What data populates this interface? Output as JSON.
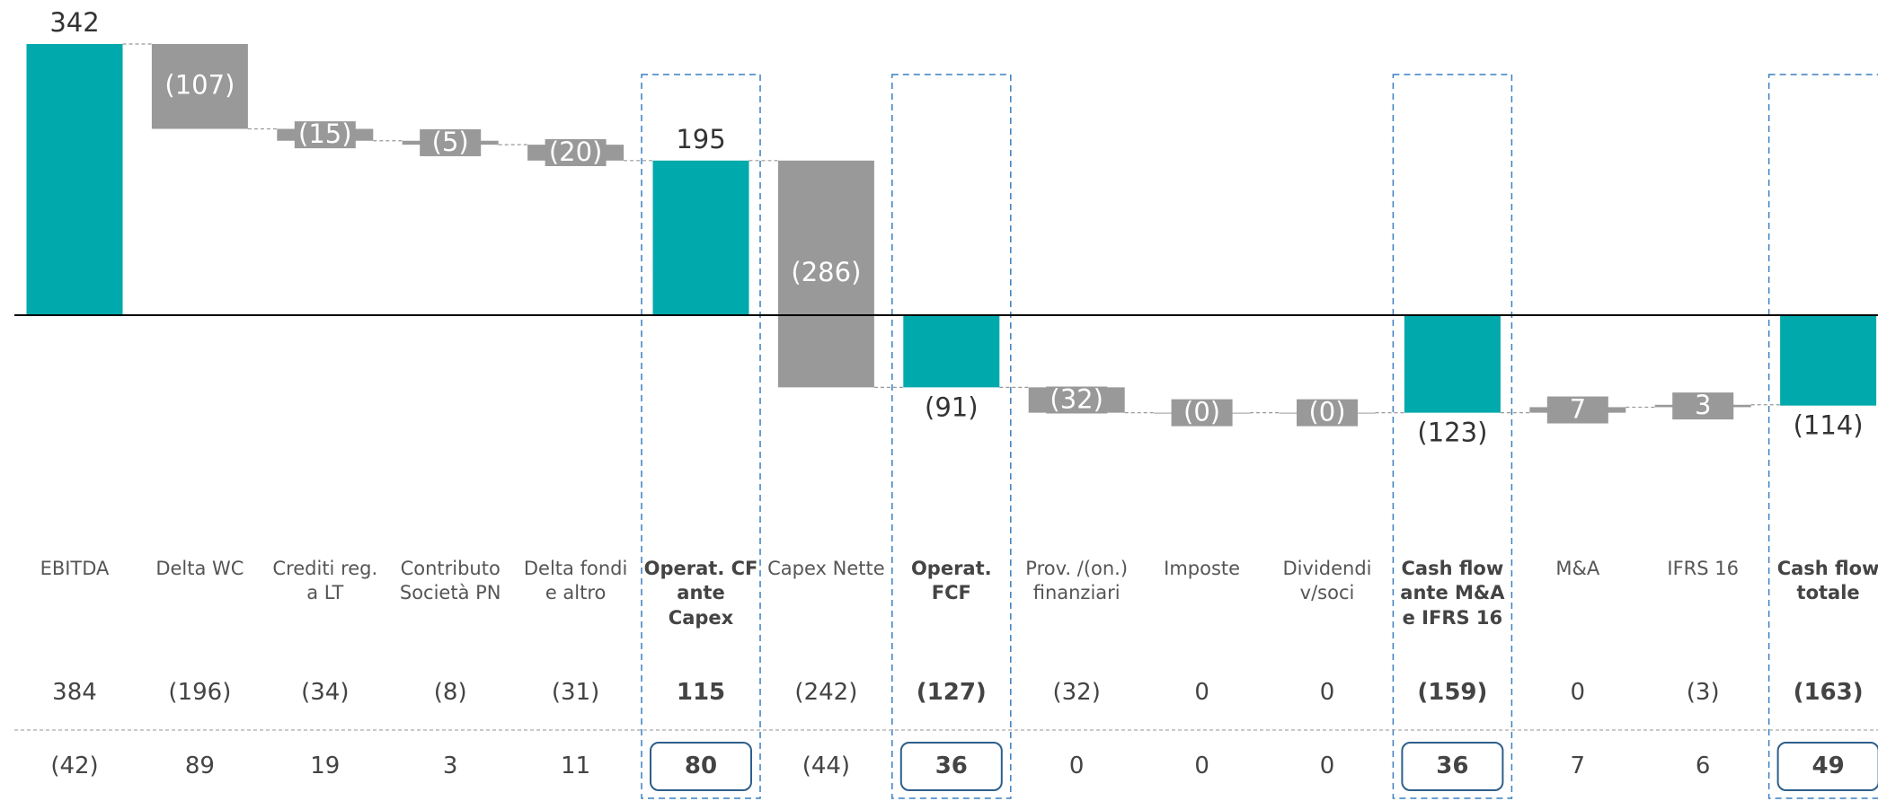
{
  "chart_data": {
    "type": "waterfall",
    "categories": [
      "EBITDA",
      "Delta WC",
      "Crediti reg. a LT",
      "Contributo Società PN",
      "Delta fondi e altro",
      "Operat. CF ante Capex",
      "Capex Nette",
      "Operat. FCF",
      "Prov. /(on.) finanziari",
      "Imposte",
      "Dividendi v/soci",
      "Cash flow ante M&A e IFRS 16",
      "M&A",
      "IFRS 16",
      "Cash flow totale"
    ],
    "values": [
      342,
      -107,
      -15,
      -5,
      -20,
      195,
      -286,
      -91,
      -32,
      0,
      0,
      -123,
      7,
      3,
      -114
    ],
    "value_labels": [
      "342",
      "(107)",
      "(15)",
      "(5)",
      "(20)",
      "195",
      "(286)",
      "(91)",
      "(32)",
      "(0)",
      "(0)",
      "(123)",
      "7",
      "3",
      "(114)"
    ],
    "measure": [
      "absolute",
      "relative",
      "relative",
      "relative",
      "relative",
      "absolute",
      "relative",
      "absolute",
      "relative",
      "relative",
      "relative",
      "absolute",
      "relative",
      "relative",
      "absolute"
    ],
    "color": "#999999",
    "total_color": "#00a9ac"
  },
  "table": {
    "rows": [
      [
        "384",
        "(196)",
        "(34)",
        "(8)",
        "(31)",
        "115",
        "(242)",
        "(127)",
        "(32)",
        "0",
        "0",
        "(159)",
        "0",
        "(3)",
        "(163)"
      ],
      [
        "(42)",
        "89",
        "19",
        "3",
        "11",
        "80",
        "(44)",
        "36",
        "0",
        "0",
        "0",
        "36",
        "7",
        "6",
        "49"
      ]
    ]
  }
}
